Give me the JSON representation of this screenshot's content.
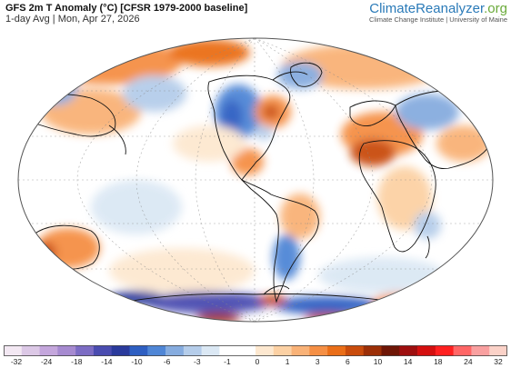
{
  "header": {
    "title": "GFS 2m T Anomaly (°C) [CFSR 1979-2000 baseline]",
    "subtitle": "1-day Avg | Mon, Apr 27, 2026"
  },
  "brand": {
    "name_main": "ClimateReanalyzer",
    "name_tld": ".org",
    "affiliation": "Climate Change Institute | University of Maine"
  },
  "map": {
    "projection": "Winkel Tripel (world)",
    "variable": "2m air temperature anomaly",
    "units": "°C",
    "ocean_color": "#ffffff",
    "coastline_color": "#111111",
    "graticule": true
  },
  "legend": {
    "ticks": [
      "-32",
      "-24",
      "-18",
      "-14",
      "-10",
      "-6",
      "-3",
      "-1",
      "0",
      "1",
      "3",
      "6",
      "10",
      "14",
      "18",
      "24",
      "32"
    ],
    "colors": [
      "#f3e8f3",
      "#dcc8e6",
      "#c4a6dc",
      "#a68ad0",
      "#7c6cc4",
      "#4a4cb0",
      "#2a3a9c",
      "#2e5fc2",
      "#4f86d6",
      "#86acdf",
      "#b5cdea",
      "#dbe8f4",
      "#ffffff",
      "#ffffff",
      "#fde8d0",
      "#fcd1a4",
      "#f9b277",
      "#f58f44",
      "#ea6e18",
      "#c94c0c",
      "#9c2f07",
      "#6e1606",
      "#9e0f0f",
      "#d40f0f",
      "#ff2020",
      "#ff6666",
      "#f9a0a0",
      "#fbd2c8"
    ]
  }
}
